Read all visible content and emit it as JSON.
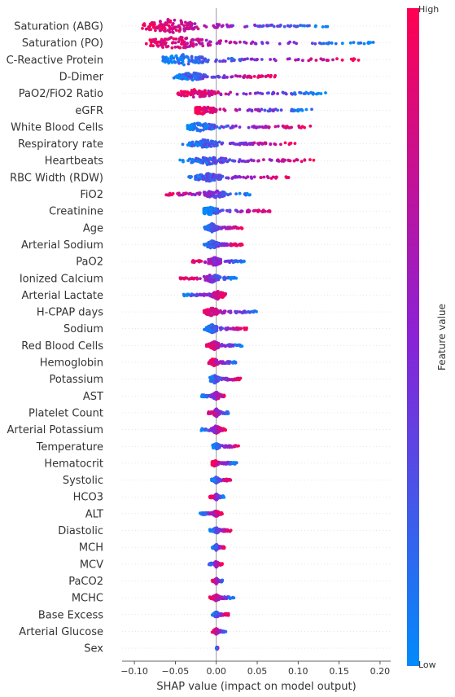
{
  "chart_data": {
    "type": "scatter",
    "subtype": "beeswarm",
    "xlabel": "SHAP value (impact on model output)",
    "xlim": [
      -0.115,
      0.213
    ],
    "xticks": [
      -0.1,
      -0.05,
      0.0,
      0.05,
      0.1,
      0.15,
      0.2
    ],
    "xtick_labels": [
      "−0.10",
      "−0.05",
      "0.00",
      "0.05",
      "0.10",
      "0.15",
      "0.20"
    ],
    "colorbar": {
      "title": "Feature value",
      "high_label": "High",
      "low_label": "Low",
      "high_color": "#ff0052",
      "mid_color": "#8a22d6",
      "low_color": "#008bfb"
    },
    "grid": false,
    "features": [
      {
        "name": "Saturation (ABG)",
        "min": -0.095,
        "max": 0.138,
        "mode": -0.055,
        "high": "left",
        "w": 7
      },
      {
        "name": "Saturation (PO)",
        "min": -0.09,
        "max": 0.197,
        "mode": -0.048,
        "high": "left",
        "w": 6
      },
      {
        "name": "C-Reactive Protein",
        "min": -0.065,
        "max": 0.182,
        "mode": -0.04,
        "high": "right",
        "w": 5
      },
      {
        "name": "D-Dimer",
        "min": -0.055,
        "max": 0.072,
        "mode": -0.03,
        "high": "right",
        "w": 4
      },
      {
        "name": "PaO2/FiO2 Ratio",
        "min": -0.048,
        "max": 0.135,
        "mode": -0.025,
        "high": "left",
        "w": 4
      },
      {
        "name": "eGFR",
        "min": -0.025,
        "max": 0.12,
        "mode": -0.018,
        "high": "left",
        "w": 4
      },
      {
        "name": "White Blood Cells",
        "min": -0.035,
        "max": 0.115,
        "mode": -0.02,
        "high": "right",
        "w": 4
      },
      {
        "name": "Respiratory rate",
        "min": -0.042,
        "max": 0.098,
        "mode": -0.015,
        "high": "right",
        "w": 4
      },
      {
        "name": "Heartbeats",
        "min": -0.045,
        "max": 0.125,
        "mode": -0.01,
        "high": "right",
        "w": 4
      },
      {
        "name": "RBC Width (RDW)",
        "min": -0.04,
        "max": 0.09,
        "mode": -0.01,
        "high": "right",
        "w": 4
      },
      {
        "name": "FiO2",
        "min": -0.062,
        "max": 0.042,
        "mode": -0.002,
        "high": "left",
        "w": 4
      },
      {
        "name": "Creatinine",
        "min": -0.015,
        "max": 0.068,
        "mode": -0.008,
        "high": "right",
        "w": 4
      },
      {
        "name": "Age",
        "min": -0.015,
        "max": 0.032,
        "mode": -0.005,
        "high": "right",
        "w": 4
      },
      {
        "name": "Arterial Sodium",
        "min": -0.015,
        "max": 0.032,
        "mode": -0.005,
        "high": "right",
        "w": 4
      },
      {
        "name": "PaO2",
        "min": -0.03,
        "max": 0.034,
        "mode": -0.002,
        "high": "left",
        "w": 4
      },
      {
        "name": "Ionized Calcium",
        "min": -0.045,
        "max": 0.025,
        "mode": -0.005,
        "high": "left",
        "w": 4
      },
      {
        "name": "Arterial Lactate",
        "min": -0.04,
        "max": 0.014,
        "mode": 0.002,
        "high": "right",
        "w": 4
      },
      {
        "name": "H-CPAP days",
        "min": -0.015,
        "max": 0.052,
        "mode": -0.005,
        "high": "left",
        "w": 4
      },
      {
        "name": "Sodium",
        "min": -0.015,
        "max": 0.038,
        "mode": -0.005,
        "high": "right",
        "w": 4
      },
      {
        "name": "Red Blood Cells",
        "min": -0.012,
        "max": 0.032,
        "mode": -0.002,
        "high": "left",
        "w": 4
      },
      {
        "name": "Hemoglobin",
        "min": -0.01,
        "max": 0.026,
        "mode": -0.003,
        "high": "left",
        "w": 4
      },
      {
        "name": "Potassium",
        "min": -0.008,
        "max": 0.03,
        "mode": -0.002,
        "high": "right",
        "w": 4
      },
      {
        "name": "AST",
        "min": -0.018,
        "max": 0.012,
        "mode": 0.0,
        "high": "right",
        "w": 4
      },
      {
        "name": "Platelet Count",
        "min": -0.01,
        "max": 0.015,
        "mode": 0.0,
        "high": "left",
        "w": 4
      },
      {
        "name": "Arterial Potassium",
        "min": -0.02,
        "max": 0.012,
        "mode": 0.0,
        "high": "right",
        "w": 4
      },
      {
        "name": "Temperature",
        "min": -0.005,
        "max": 0.028,
        "mode": 0.0,
        "high": "right",
        "w": 3
      },
      {
        "name": "Hematocrit",
        "min": -0.005,
        "max": 0.025,
        "mode": -0.002,
        "high": "left",
        "w": 3
      },
      {
        "name": "Systolic",
        "min": -0.006,
        "max": 0.018,
        "mode": 0.0,
        "high": "right",
        "w": 3
      },
      {
        "name": "HCO3",
        "min": -0.008,
        "max": 0.01,
        "mode": 0.0,
        "high": "left",
        "w": 3
      },
      {
        "name": "ALT",
        "min": -0.02,
        "max": 0.008,
        "mode": 0.0,
        "high": "right",
        "w": 3
      },
      {
        "name": "Diastolic",
        "min": -0.008,
        "max": 0.018,
        "mode": 0.0,
        "high": "right",
        "w": 3
      },
      {
        "name": "MCH",
        "min": -0.005,
        "max": 0.01,
        "mode": 0.0,
        "high": "right",
        "w": 3
      },
      {
        "name": "MCV",
        "min": -0.01,
        "max": 0.008,
        "mode": 0.0,
        "high": "right",
        "w": 3
      },
      {
        "name": "PaCO2",
        "min": -0.005,
        "max": 0.008,
        "mode": 0.0,
        "high": "left",
        "w": 3
      },
      {
        "name": "MCHC",
        "min": -0.008,
        "max": 0.022,
        "mode": 0.0,
        "high": "left",
        "w": 3
      },
      {
        "name": "Base Excess",
        "min": -0.005,
        "max": 0.015,
        "mode": 0.0,
        "high": "right",
        "w": 3
      },
      {
        "name": "Arterial Glucose",
        "min": -0.005,
        "max": 0.012,
        "mode": 0.0,
        "high": "left",
        "w": 3
      },
      {
        "name": "Sex",
        "min": 0.0,
        "max": 0.002,
        "mode": 0.001,
        "high": "right",
        "w": 1
      }
    ]
  }
}
